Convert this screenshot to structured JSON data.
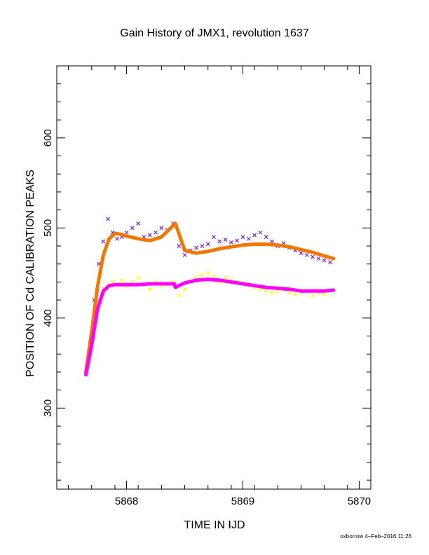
{
  "chart_data": {
    "type": "scatter",
    "title": "Gain History of JMX1, revolution 1637",
    "xlabel": "TIME IN IJD",
    "ylabel": "POSITION OF Cd CALIBRATION PEAKS",
    "xlim": [
      5867.4,
      5870.1
    ],
    "ylim": [
      210,
      680
    ],
    "x_ticks": [
      5868,
      5869,
      5870
    ],
    "y_ticks": [
      300,
      400,
      500,
      600
    ],
    "grid": false,
    "series": [
      {
        "color": "#7a1fd8",
        "marker": "x",
        "x": [
          5867.68,
          5867.72,
          5867.76,
          5867.8,
          5867.84,
          5867.88,
          5867.92,
          5867.96,
          5868.0,
          5868.05,
          5868.1,
          5868.15,
          5868.2,
          5868.25,
          5868.3,
          5868.35,
          5868.4,
          5868.45,
          5868.5,
          5868.55,
          5868.6,
          5868.65,
          5868.7,
          5868.75,
          5868.8,
          5868.85,
          5868.9,
          5868.95,
          5869.0,
          5869.05,
          5869.1,
          5869.15,
          5869.2,
          5869.25,
          5869.3,
          5869.35,
          5869.4,
          5869.45,
          5869.5,
          5869.55,
          5869.6,
          5869.65,
          5869.7,
          5869.75
        ],
        "y": [
          360,
          420,
          460,
          485,
          510,
          495,
          488,
          490,
          495,
          500,
          505,
          490,
          492,
          495,
          500,
          498,
          505,
          480,
          470,
          475,
          478,
          480,
          482,
          490,
          485,
          487,
          484,
          486,
          490,
          488,
          492,
          495,
          490,
          485,
          480,
          483,
          478,
          475,
          472,
          470,
          468,
          466,
          464,
          462
        ]
      },
      {
        "color": "#ffff00",
        "marker": "x",
        "x": [
          5867.68,
          5867.72,
          5867.76,
          5867.8,
          5867.84,
          5867.88,
          5867.92,
          5867.96,
          5868.0,
          5868.05,
          5868.1,
          5868.15,
          5868.2,
          5868.25,
          5868.3,
          5868.35,
          5868.4,
          5868.45,
          5868.5,
          5868.55,
          5868.6,
          5868.65,
          5868.7,
          5868.75,
          5868.8,
          5868.85,
          5868.9,
          5868.95,
          5869.0,
          5869.05,
          5869.1,
          5869.15,
          5869.2,
          5869.25,
          5869.3,
          5869.35,
          5869.4,
          5869.45,
          5869.5,
          5869.55,
          5869.6,
          5869.65,
          5869.7,
          5869.75
        ],
        "y": [
          350,
          395,
          420,
          432,
          436,
          440,
          438,
          442,
          436,
          440,
          445,
          438,
          432,
          440,
          436,
          438,
          440,
          425,
          432,
          440,
          445,
          448,
          450,
          446,
          440,
          445,
          442,
          440,
          438,
          436,
          434,
          432,
          430,
          428,
          430,
          432,
          428,
          426,
          428,
          430,
          425,
          428,
          426,
          430
        ]
      },
      {
        "color": "#f07800",
        "marker": "line",
        "x": [
          5867.65,
          5867.7,
          5867.75,
          5867.8,
          5867.85,
          5867.9,
          5867.95,
          5868.0,
          5868.1,
          5868.2,
          5868.3,
          5868.38,
          5868.42,
          5868.46,
          5868.5,
          5868.6,
          5868.7,
          5868.8,
          5868.9,
          5869.0,
          5869.1,
          5869.2,
          5869.3,
          5869.4,
          5869.5,
          5869.6,
          5869.7,
          5869.78
        ],
        "y": [
          340,
          385,
          435,
          470,
          488,
          494,
          493,
          491,
          488,
          486,
          490,
          500,
          505,
          490,
          475,
          472,
          474,
          477,
          479,
          481,
          482,
          482,
          481,
          479,
          476,
          473,
          469,
          466
        ]
      },
      {
        "color": "#ff00ff",
        "marker": "line",
        "x": [
          5867.65,
          5867.7,
          5867.75,
          5867.8,
          5867.85,
          5867.9,
          5868.0,
          5868.1,
          5868.2,
          5868.3,
          5868.41,
          5868.42,
          5868.5,
          5868.6,
          5868.7,
          5868.8,
          5868.9,
          5869.0,
          5869.1,
          5869.2,
          5869.3,
          5869.4,
          5869.5,
          5869.6,
          5869.7,
          5869.78
        ],
        "y": [
          337,
          370,
          410,
          430,
          436,
          437,
          437,
          437,
          438,
          438,
          438,
          434,
          439,
          442,
          443,
          442,
          440,
          438,
          436,
          434,
          433,
          432,
          430,
          430,
          430,
          431
        ]
      }
    ]
  },
  "footer": {
    "credit": "oxborrow  4–Feb–2016 11:26"
  }
}
